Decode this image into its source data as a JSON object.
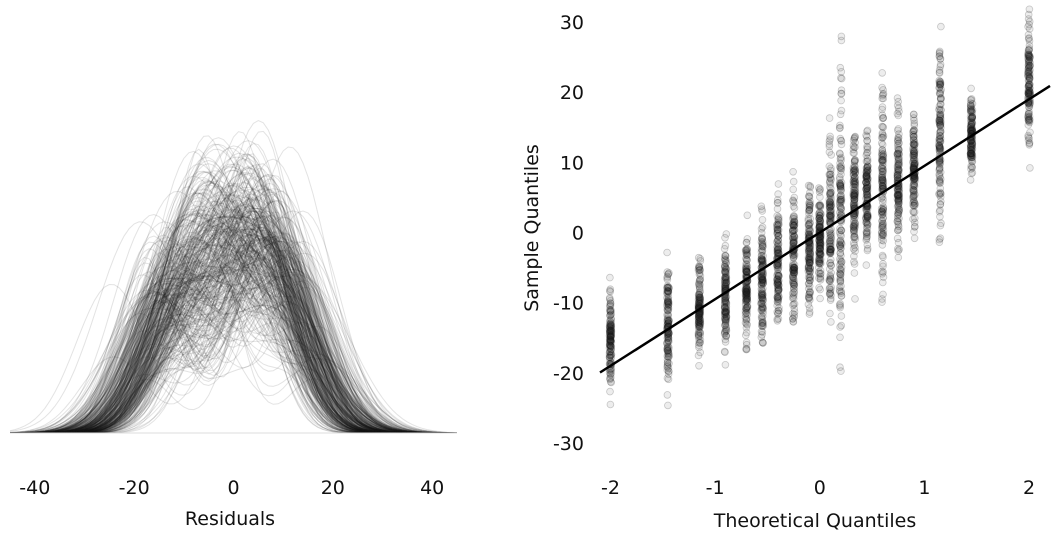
{
  "chart_data": [
    {
      "type": "area",
      "description": "Overlaid kernel density curves of residuals (many simulated draws)",
      "xlabel": "Residuals",
      "ylabel": "",
      "xticks": [
        "-40",
        "-20",
        "0",
        "20",
        "40"
      ],
      "xtick_values": [
        -40,
        -20,
        0,
        20,
        40
      ],
      "xlim": [
        -45,
        45
      ],
      "grid": false,
      "legend": "none",
      "series_color": "#1a1a1a",
      "curve_count": 400,
      "mixture_modes": [
        -12,
        0,
        10
      ],
      "typical_sd": 6.5
    },
    {
      "type": "scatter",
      "description": "Normal Q-Q plot of residuals from many simulated draws",
      "xlabel": "Theoretical Quantiles",
      "ylabel": "Sample Quantiles",
      "xticks": [
        "-2",
        "-1",
        "0",
        "1",
        "2"
      ],
      "xtick_values": [
        -2,
        -1,
        0,
        1,
        2
      ],
      "yticks": [
        "30",
        "20",
        "10",
        "0",
        "-10",
        "-20",
        "-30"
      ],
      "ytick_values": [
        30,
        20,
        10,
        0,
        -10,
        -20,
        -30
      ],
      "xlim": [
        -2.1,
        2.2
      ],
      "ylim": [
        -31,
        32
      ],
      "grid": false,
      "legend": "none",
      "point_color": "#1a1a1a",
      "theoretical_quantiles": [
        -2.0,
        -1.45,
        -1.15,
        -0.9,
        -0.7,
        -0.55,
        -0.4,
        -0.25,
        -0.1,
        0.0,
        0.1,
        0.2,
        0.33,
        0.45,
        0.6,
        0.75,
        0.9,
        1.15,
        1.45,
        2.0
      ],
      "column_ranges": [
        [
          -27,
          -5
        ],
        [
          -25,
          -1
        ],
        [
          -20,
          -3
        ],
        [
          -19,
          0
        ],
        [
          -17,
          3
        ],
        [
          -16,
          6
        ],
        [
          -14,
          9
        ],
        [
          -13,
          11
        ],
        [
          -12,
          12
        ],
        [
          -10,
          7
        ],
        [
          -18,
          17
        ],
        [
          -20,
          28
        ],
        [
          -10,
          14
        ],
        [
          -6,
          16
        ],
        [
          -10,
          26
        ],
        [
          -5,
          20
        ],
        [
          -2,
          17
        ],
        [
          -5,
          30
        ],
        [
          7,
          22
        ],
        [
          6,
          32
        ]
      ],
      "column_centers": [
        -15,
        -13,
        -11,
        -9.5,
        -8,
        -6.5,
        -5,
        -3.5,
        -2,
        -1,
        1,
        3,
        4,
        5.5,
        6,
        7.5,
        9,
        13,
        14,
        21
      ],
      "reference_line": {
        "intercept": 0,
        "slope": 9.5
      }
    }
  ]
}
